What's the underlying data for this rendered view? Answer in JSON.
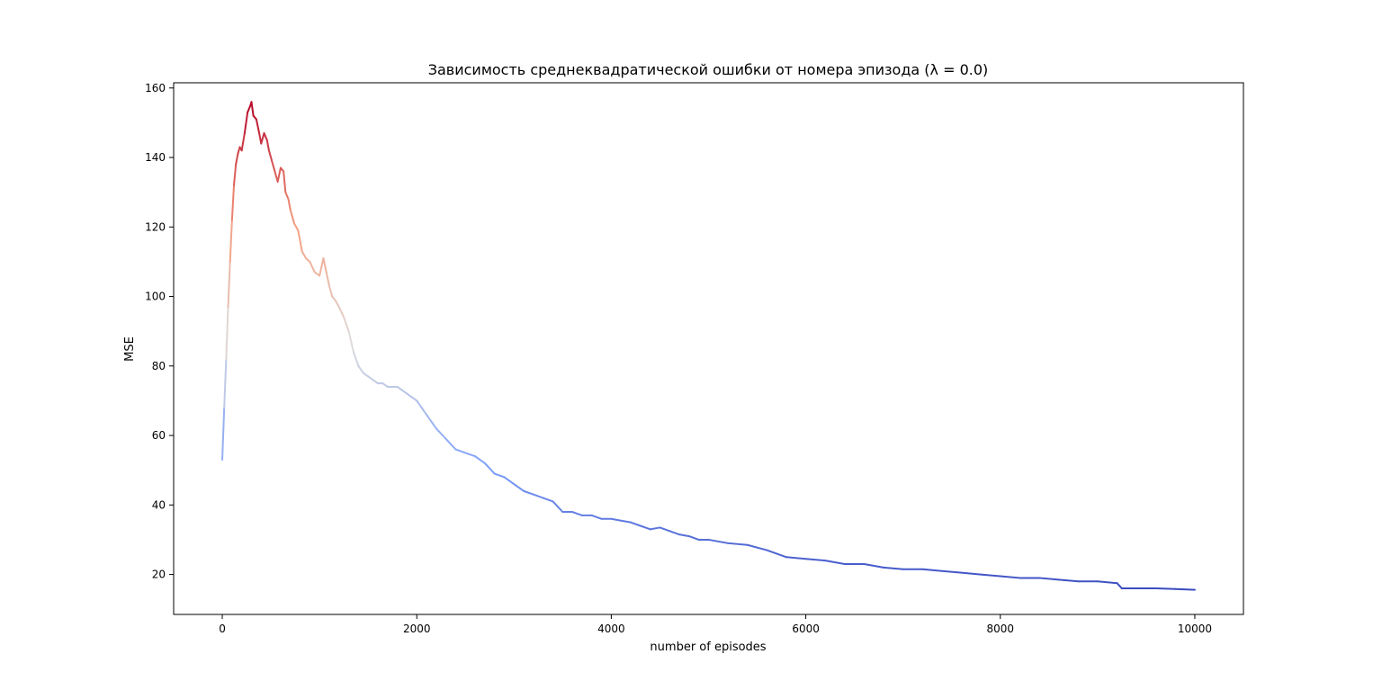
{
  "chart_data": {
    "type": "line",
    "title": "Зависимость среднеквадратической ошибки от номера эпизода (λ = 0.0)",
    "xlabel": "number of episodes",
    "ylabel": "MSE",
    "xlim": [
      -500,
      10500
    ],
    "ylim": [
      8.5,
      161.5
    ],
    "xticks": [
      0,
      2000,
      4000,
      6000,
      8000,
      10000
    ],
    "xtick_labels": [
      "0",
      "2000",
      "4000",
      "6000",
      "8000",
      "10000"
    ],
    "yticks": [
      20,
      40,
      60,
      80,
      100,
      120,
      140,
      160
    ],
    "ytick_labels": [
      "20",
      "40",
      "60",
      "80",
      "100",
      "120",
      "140",
      "160"
    ],
    "grid": false,
    "colormap": "coolwarm (color mapped to MSE value)",
    "series": [
      {
        "x": [
          0,
          20,
          40,
          60,
          80,
          100,
          120,
          140,
          160,
          180,
          200,
          230,
          260,
          290,
          300,
          320,
          350,
          380,
          400,
          430,
          460,
          480,
          510,
          540,
          570,
          600,
          630,
          650,
          680,
          700,
          740,
          780,
          820,
          860,
          900,
          950,
          1000,
          1040,
          1070,
          1100,
          1130,
          1160,
          1200,
          1250,
          1300,
          1350,
          1400,
          1450,
          1500,
          1550,
          1600,
          1650,
          1700,
          1750,
          1800,
          1850,
          1900,
          1950,
          2000,
          2050,
          2100,
          2150,
          2200,
          2300,
          2400,
          2500,
          2600,
          2700,
          2800,
          2900,
          3000,
          3100,
          3200,
          3300,
          3400,
          3500,
          3600,
          3700,
          3800,
          3900,
          4000,
          4100,
          4200,
          4300,
          4400,
          4500,
          4600,
          4700,
          4800,
          4900,
          5000,
          5200,
          5400,
          5600,
          5800,
          6000,
          6200,
          6400,
          6500,
          6600,
          6800,
          7000,
          7200,
          7400,
          7600,
          7800,
          8000,
          8200,
          8400,
          8600,
          8800,
          9000,
          9200,
          9250,
          9400,
          9600,
          9800,
          10000
        ],
        "y": [
          53,
          68,
          82,
          97,
          110,
          122,
          132,
          138,
          141,
          143,
          142,
          147,
          153,
          155,
          156,
          152,
          151,
          147,
          144,
          147,
          145,
          142,
          139,
          136,
          133,
          137,
          136,
          130,
          128,
          125,
          121,
          119,
          113,
          111,
          110,
          107,
          106,
          111,
          107,
          103,
          100,
          99,
          97,
          94,
          90,
          84,
          80,
          78,
          77,
          76,
          75,
          75,
          74,
          74,
          74,
          73,
          72,
          71,
          70,
          68,
          66,
          64,
          62,
          59,
          56,
          55,
          54,
          52,
          49,
          48,
          46,
          44,
          43,
          42,
          41,
          38,
          38,
          37,
          37,
          36,
          36,
          35.5,
          35,
          34,
          33,
          33.5,
          32.5,
          31.5,
          31,
          30,
          30,
          29,
          28.5,
          27,
          25,
          24.5,
          24,
          23,
          23,
          23,
          22,
          21.5,
          21.5,
          21,
          20.5,
          20,
          19.5,
          19,
          19,
          18.5,
          18,
          18,
          17.5,
          16,
          16,
          16,
          15.8,
          15.6
        ]
      }
    ]
  }
}
